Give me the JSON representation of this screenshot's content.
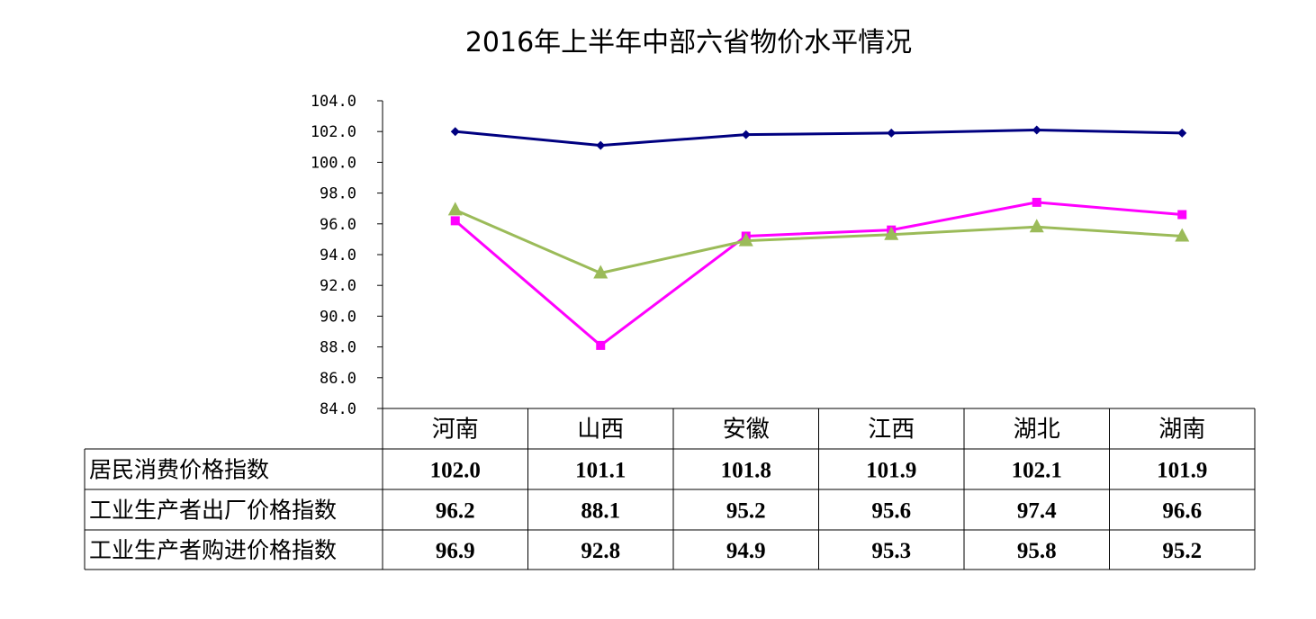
{
  "chart_data": {
    "type": "line",
    "title": "2016年上半年中部六省物价水平情况",
    "xlabel": "",
    "ylabel": "",
    "categories": [
      "河南",
      "山西",
      "安徽",
      "江西",
      "湖北",
      "湖南"
    ],
    "ylim": [
      84.0,
      104.0
    ],
    "yticks": [
      "84.0",
      "86.0",
      "88.0",
      "90.0",
      "92.0",
      "94.0",
      "96.0",
      "98.0",
      "100.0",
      "102.0",
      "104.0"
    ],
    "grid": false,
    "legend": "data table below chart",
    "series": [
      {
        "name": "居民消费价格指数",
        "values": [
          102.0,
          101.1,
          101.8,
          101.9,
          102.1,
          101.9
        ],
        "labels": [
          "102.0",
          "101.1",
          "101.8",
          "101.9",
          "102.1",
          "101.9"
        ],
        "color": "#000080",
        "marker": "diamond"
      },
      {
        "name": "工业生产者出厂价格指数",
        "values": [
          96.2,
          88.1,
          95.2,
          95.6,
          97.4,
          96.6
        ],
        "labels": [
          "96.2",
          "88.1",
          "95.2",
          "95.6",
          "97.4",
          "96.6"
        ],
        "color": "#FF00FF",
        "marker": "square"
      },
      {
        "name": "工业生产者购进价格指数",
        "values": [
          96.9,
          92.8,
          94.9,
          95.3,
          95.8,
          95.2
        ],
        "labels": [
          "96.9",
          "92.8",
          "94.9",
          "95.3",
          "95.8",
          "95.2"
        ],
        "color": "#9BBB59",
        "marker": "triangle"
      }
    ]
  }
}
